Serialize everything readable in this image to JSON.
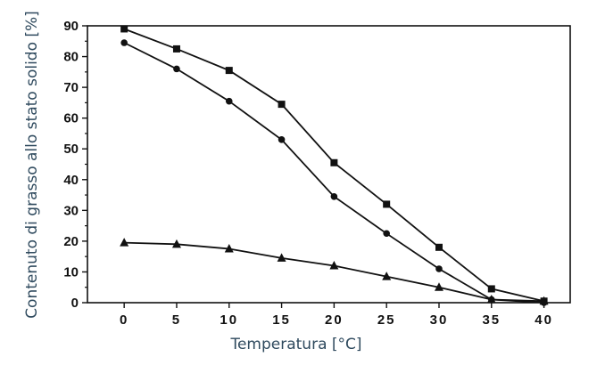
{
  "chart_data": {
    "type": "line",
    "title": "",
    "xlabel": "Temperatura [°C]",
    "ylabel": "Contenuto di grasso allo stato solido [%]",
    "x": [
      0,
      5,
      10,
      15,
      20,
      25,
      30,
      35,
      40
    ],
    "xlim": [
      -3.5,
      42.5
    ],
    "ylim": [
      0,
      90
    ],
    "x_ticks": [
      0,
      5,
      10,
      15,
      20,
      25,
      30,
      35,
      40
    ],
    "y_ticks": [
      0,
      10,
      20,
      30,
      40,
      50,
      60,
      70,
      80,
      90
    ],
    "grid": false,
    "legend": "none",
    "series": [
      {
        "marker": "square",
        "values": [
          89,
          82.5,
          75.5,
          64.5,
          45.5,
          32,
          18,
          4.5,
          0.5
        ]
      },
      {
        "marker": "circle",
        "values": [
          84.5,
          76,
          65.5,
          53,
          34.5,
          22.5,
          11,
          1,
          0
        ]
      },
      {
        "marker": "triangle",
        "values": [
          19.5,
          19,
          17.5,
          14.5,
          12,
          8.5,
          5,
          1,
          0.5
        ]
      }
    ],
    "colors": {
      "axis": "#111111",
      "line": "#111111",
      "axis_title": "#2f4a5e"
    }
  }
}
